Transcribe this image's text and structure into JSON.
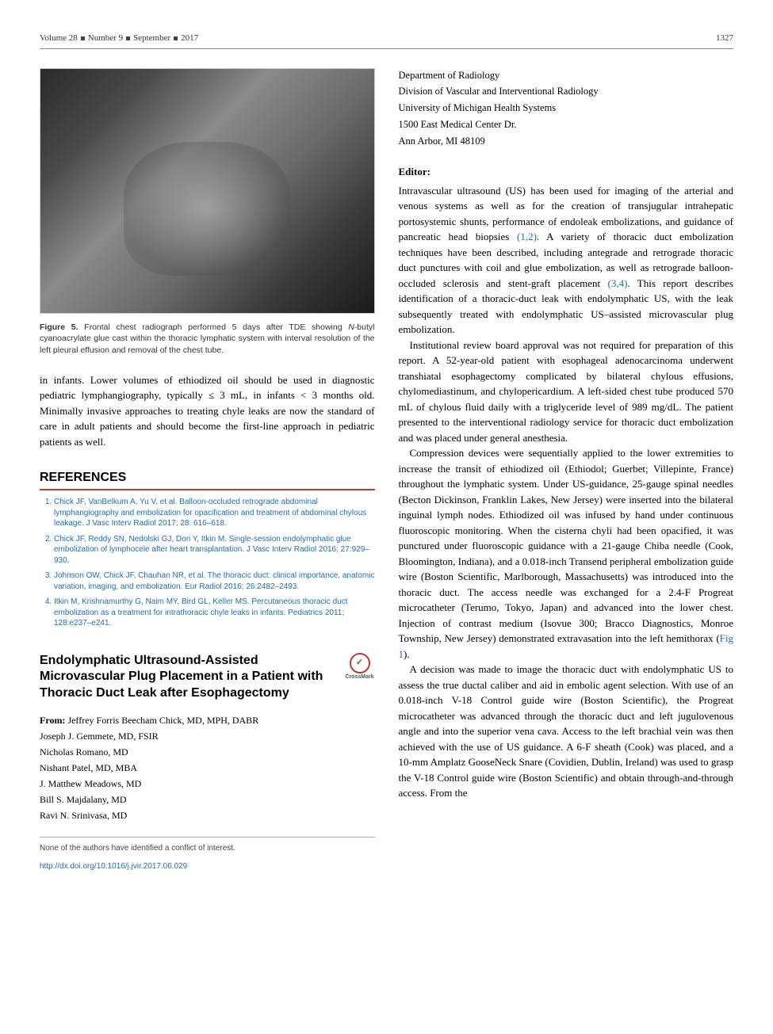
{
  "header": {
    "volume": "Volume 28",
    "number": "Number 9",
    "month": "September",
    "year": "2017",
    "page": "1327"
  },
  "figure5": {
    "label": "Figure 5.",
    "text": "Frontal chest radiograph performed 5 days after TDE showing N-butyl cyanoacrylate glue cast within the thoracic lymphatic system with interval resolution of the left pleural effusion and removal of the chest tube.",
    "italic_word": "N"
  },
  "left_body": "in infants. Lower volumes of ethiodized oil should be used in diagnostic pediatric lymphangiography, typically ≤ 3 mL, in infants < 3 months old. Minimally invasive approaches to treating chyle leaks are now the standard of care in adult patients and should become the first-line approach in pediatric patients as well.",
  "references_heading": "REFERENCES",
  "references": [
    "Chick JF, VanBelkum A, Yu V, et al. Balloon-occluded retrograde abdominal lymphangiography and embolization for opacification and treatment of abdominal chylous leakage. J Vasc Interv Radiol 2017; 28: 616–618.",
    "Chick JF, Reddy SN, Nedolski GJ, Dori Y, Itkin M. Single-session endolymphatic glue embolization of lymphocele after heart transplantation. J Vasc Interv Radiol 2016; 27:929–930.",
    "Johnson OW, Chick JF, Chauhan NR, et al. The thoracic duct: clinical importance, anatomic variation, imaging, and embolization. Eur Radiol 2016; 26:2482–2493.",
    "Itkin M, Krishnamurthy G, Naim MY, Bird GL, Keller MS. Percutaneous thoracic duct embolization as a treatment for intrathoracic chyle leaks in infants. Pediatrics 2011; 128:e237–e241."
  ],
  "article_title": "Endolymphatic Ultrasound-Assisted Microvascular Plug Placement in a Patient with Thoracic Duct Leak after Esophagectomy",
  "crossmark_label": "CrossMark",
  "from_label": "From:",
  "authors": [
    "Jeffrey Forris Beecham Chick, MD, MPH, DABR",
    "Joseph J. Gemmete, MD, FSIR",
    "Nicholas Romano, MD",
    "Nishant Patel, MD, MBA",
    "J. Matthew Meadows, MD",
    "Bill S. Majdalany, MD",
    "Ravi N. Srinivasa, MD"
  ],
  "coi": "None of the authors have identified a conflict of interest.",
  "doi": "http://dx.doi.org/10.1016/j.jvir.2017.06.029",
  "affiliation": [
    "Department of Radiology",
    "Division of Vascular and Interventional Radiology",
    "University of Michigan Health Systems",
    "1500 East Medical Center Dr.",
    "Ann Arbor, MI 48109"
  ],
  "editor_heading": "Editor:",
  "paragraphs": {
    "p1a": "Intravascular ultrasound (US) has been used for imaging of the arterial and venous systems as well as for the creation of transjugular intrahepatic portosystemic shunts, performance of endoleak embolizations, and guidance of pancreatic head biopsies ",
    "p1_cite1": "(1,2)",
    "p1b": ". A variety of thoracic duct embolization techniques have been described, including antegrade and retrograde thoracic duct punctures with coil and glue embolization, as well as retrograde balloon-occluded sclerosis and stent-graft placement ",
    "p1_cite2": "(3,4)",
    "p1c": ". This report describes identification of a thoracic-duct leak with endolymphatic US, with the leak subsequently treated with endolymphatic US–assisted microvascular plug embolization.",
    "p2": "Institutional review board approval was not required for preparation of this report. A 52-year-old patient with esophageal adenocarcinoma underwent transhiatal esophagectomy complicated by bilateral chylous effusions, chylomediastinum, and chylopericardium. A left-sided chest tube produced 570 mL of chylous fluid daily with a triglyceride level of 989 mg/dL. The patient presented to the interventional radiology service for thoracic duct embolization and was placed under general anesthesia.",
    "p3a": "Compression devices were sequentially applied to the lower extremities to increase the transit of ethiodized oil (Ethiodol; Guerbet; Villepinte, France) throughout the lymphatic system. Under US-guidance, 25-gauge spinal needles (Becton Dickinson, Franklin Lakes, New Jersey) were inserted into the bilateral inguinal lymph nodes. Ethiodized oil was infused by hand under continuous fluoroscopic monitoring. When the cisterna chyli had been opacified, it was punctured under fluoroscopic guidance with a 21-gauge Chiba needle (Cook, Bloomington, Indiana), and a 0.018-inch Transend peripheral embolization guide wire (Boston Scientific, Marlborough, Massachusetts) was introduced into the thoracic duct. The access needle was exchanged for a 2.4-F Progreat microcatheter (Terumo, Tokyo, Japan) and advanced into the lower chest. Injection of contrast medium (Isovue 300; Bracco Diagnostics, Monroe Township, New Jersey) demonstrated extravasation into the left hemithorax (",
    "p3_fig": "Fig 1",
    "p3b": ").",
    "p4": "A decision was made to image the thoracic duct with endolymphatic US to assess the true ductal caliber and aid in embolic agent selection. With use of an 0.018-inch V-18 Control guide wire (Boston Scientific), the Progreat microcatheter was advanced through the thoracic duct and left jugulovenous angle and into the superior vena cava. Access to the left brachial vein was then achieved with the use of US guidance. A 6-F sheath (Cook) was placed, and a 10-mm Amplatz GooseNeck Snare (Covidien, Dublin, Ireland) was used to grasp the V-18 Control guide wire (Boston Scientific) and obtain through-and-through access. From the"
  },
  "colors": {
    "link": "#1a6eb8",
    "rule": "#c0392b"
  }
}
